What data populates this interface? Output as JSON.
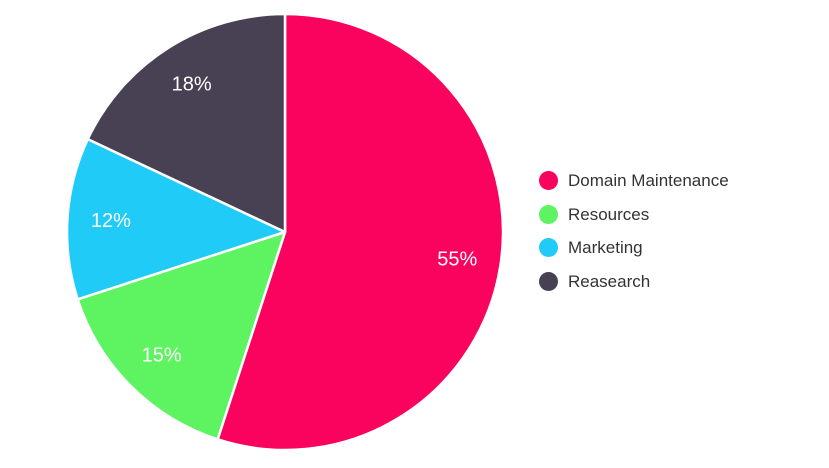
{
  "page": {
    "background_color": "#ffffff"
  },
  "chart_data": {
    "type": "pie",
    "title": "",
    "categories": [
      "Domain Maintenance",
      "Resources",
      "Marketing",
      "Reasearch"
    ],
    "values": [
      55,
      15,
      12,
      18
    ],
    "colors": [
      "#F9035E",
      "#5EF360",
      "#20CBF7",
      "#474153"
    ],
    "slice_labels": [
      "55%",
      "15%",
      "12%",
      "18%"
    ],
    "slice_label_color": "#ffffff",
    "slice_border_color": "#ffffff",
    "start_angle_deg": 0,
    "direction": "clockwise",
    "legend_position": "right",
    "legend_text_color": "#333333"
  }
}
